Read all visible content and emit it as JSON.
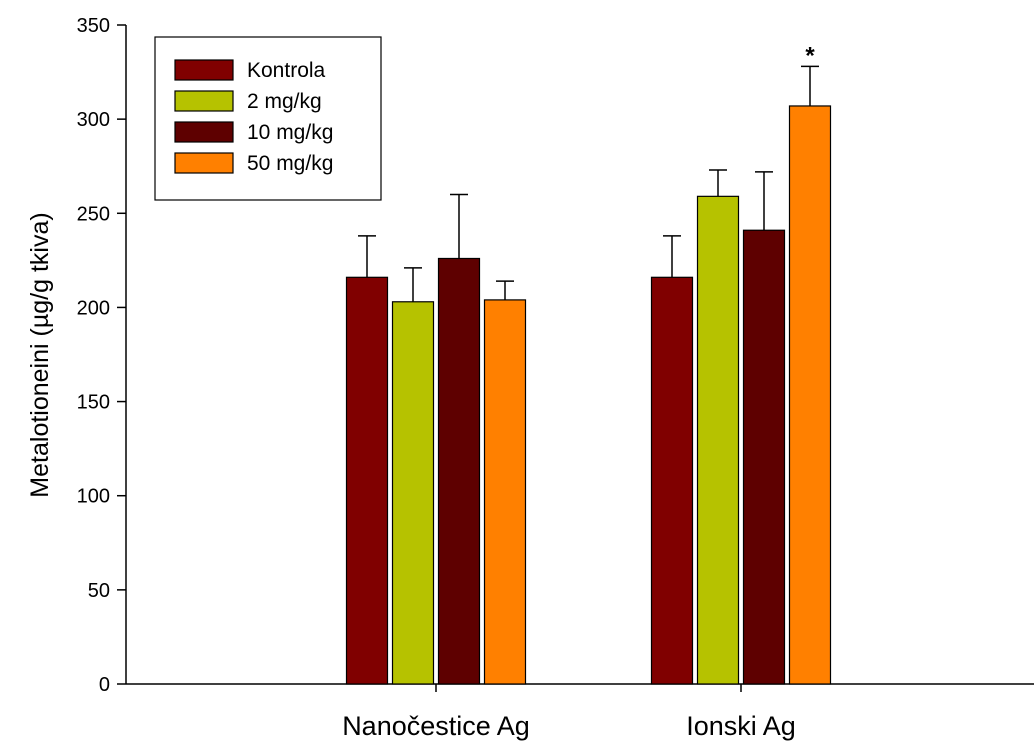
{
  "chart_data": {
    "type": "bar",
    "title": "",
    "xlabel": "",
    "ylabel": "Metalotioneini (µg/g tkiva)",
    "ylim": [
      0,
      350
    ],
    "yticks": [
      0,
      50,
      100,
      150,
      200,
      250,
      300,
      350
    ],
    "categories": [
      "Nanočestice Ag",
      "Ionski Ag"
    ],
    "series": [
      {
        "name": "Kontrola",
        "color": "#800000",
        "values": [
          216,
          216
        ],
        "errors": [
          22,
          22
        ]
      },
      {
        "name": "2 mg/kg",
        "color": "#b6c200",
        "values": [
          203,
          259
        ],
        "errors": [
          18,
          14
        ]
      },
      {
        "name": "10 mg/kg",
        "color": "#5e0000",
        "values": [
          226,
          241
        ],
        "errors": [
          34,
          31
        ]
      },
      {
        "name": "50 mg/kg",
        "color": "#ff8000",
        "values": [
          204,
          307
        ],
        "errors": [
          10,
          21
        ]
      }
    ],
    "annotations": [
      {
        "text": "*",
        "category": "Ionski Ag",
        "series": "50 mg/kg"
      }
    ],
    "legend": "top-left",
    "grid": false
  }
}
